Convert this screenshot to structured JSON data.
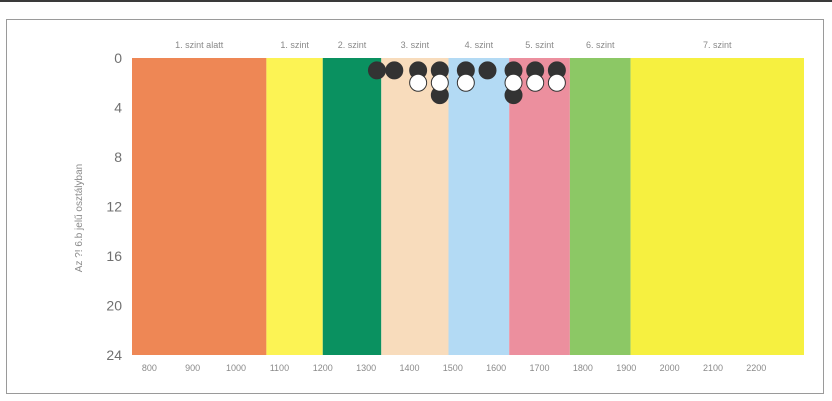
{
  "chart_data": {
    "type": "scatter",
    "title": "",
    "xlabel": "",
    "ylabel": "Az ?! 6.b jelű osztályban",
    "xlim": [
      760,
      2310
    ],
    "ylim": [
      24,
      0
    ],
    "x_ticks": [
      {
        "value": 800,
        "label": "800"
      },
      {
        "value": 900,
        "label": "900"
      },
      {
        "value": 1000,
        "label": "1000"
      },
      {
        "value": 1100,
        "label": "1100"
      },
      {
        "value": 1200,
        "label": "1200"
      },
      {
        "value": 1300,
        "label": "1300"
      },
      {
        "value": 1400,
        "label": "1400"
      },
      {
        "value": 1500,
        "label": "1500"
      },
      {
        "value": 1600,
        "label": "1600"
      },
      {
        "value": 1700,
        "label": "1700"
      },
      {
        "value": 1800,
        "label": "1800"
      },
      {
        "value": 1900,
        "label": "1900"
      },
      {
        "value": 2000,
        "label": "2000"
      },
      {
        "value": 2100,
        "label": "2100"
      },
      {
        "value": 2200,
        "label": "2200"
      }
    ],
    "y_ticks": [
      0,
      4,
      8,
      12,
      16,
      20,
      24
    ],
    "bands": [
      {
        "label": "1. szint alatt",
        "from": 760,
        "to": 1070,
        "color": "#ee8755"
      },
      {
        "label": "1. szint",
        "from": 1070,
        "to": 1200,
        "color": "#fcf354"
      },
      {
        "label": "2. szint",
        "from": 1200,
        "to": 1335,
        "color": "#0a9160"
      },
      {
        "label": "3. szint",
        "from": 1335,
        "to": 1490,
        "color": "#f8dcbc"
      },
      {
        "label": "4. szint",
        "from": 1490,
        "to": 1630,
        "color": "#b3daf4"
      },
      {
        "label": "5. szint",
        "from": 1630,
        "to": 1770,
        "color": "#ec8f9e"
      },
      {
        "label": "6. szint",
        "from": 1770,
        "to": 1910,
        "color": "#8cc865"
      },
      {
        "label": "7. szint",
        "from": 1910,
        "to": 2310,
        "color": "#f6f040"
      }
    ],
    "series": [
      {
        "marker_color": "#333333",
        "points": [
          {
            "x": 1325,
            "y": 1
          },
          {
            "x": 1365,
            "y": 1
          },
          {
            "x": 1420,
            "y": 1
          },
          {
            "x": 1470,
            "y": 1
          },
          {
            "x": 1470,
            "y": 3
          },
          {
            "x": 1530,
            "y": 1
          },
          {
            "x": 1580,
            "y": 1
          },
          {
            "x": 1640,
            "y": 1
          },
          {
            "x": 1640,
            "y": 3
          },
          {
            "x": 1690,
            "y": 1
          },
          {
            "x": 1740,
            "y": 1
          }
        ]
      },
      {
        "marker_color": "#ffffff",
        "points": [
          {
            "x": 1420,
            "y": 2
          },
          {
            "x": 1470,
            "y": 2
          },
          {
            "x": 1530,
            "y": 2
          },
          {
            "x": 1640,
            "y": 2
          },
          {
            "x": 1690,
            "y": 2
          },
          {
            "x": 1740,
            "y": 2
          }
        ]
      }
    ]
  }
}
